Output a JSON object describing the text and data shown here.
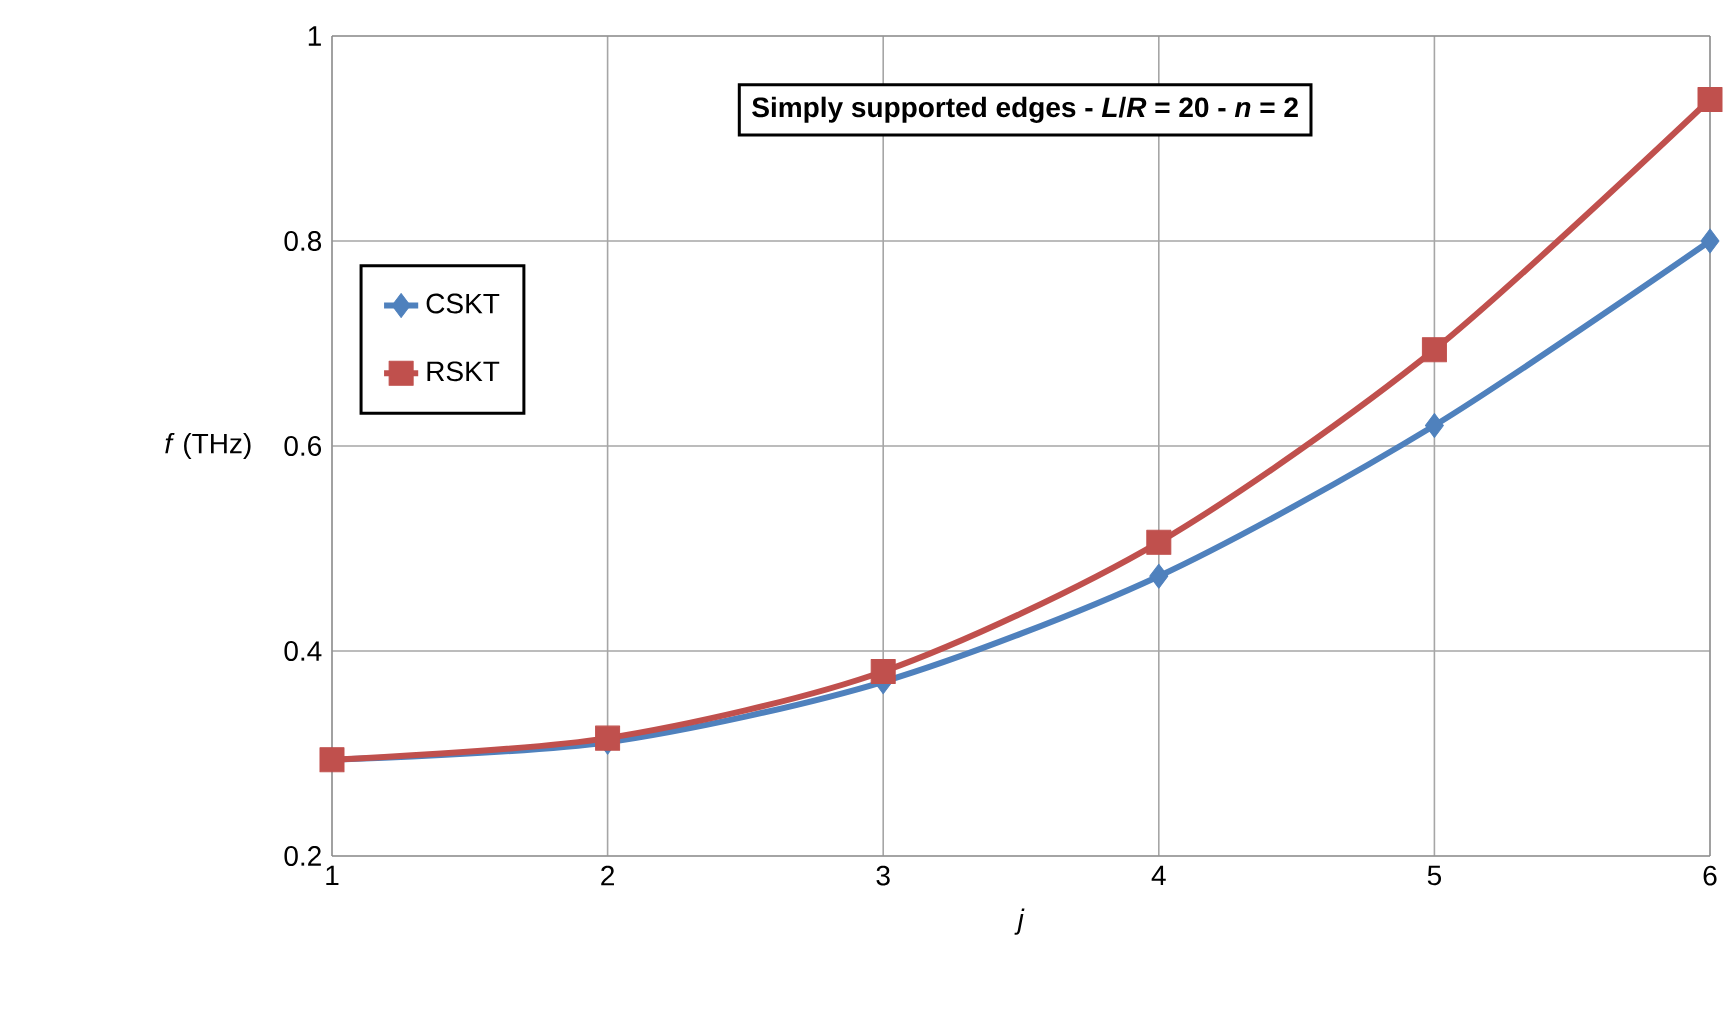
{
  "chart_data": {
    "type": "line",
    "title": "Simply supported edges - *L*/*R* = 20 - *n* = 2",
    "xlabel": "*j*",
    "ylabel": "*f* (THz)",
    "x": [
      1,
      2,
      3,
      4,
      5,
      6
    ],
    "series": [
      {
        "name": "CSKT",
        "color": "#4f81bd",
        "marker": "diamond",
        "values": [
          0.294,
          0.311,
          0.37,
          0.473,
          0.62,
          0.8
        ]
      },
      {
        "name": "RSKT",
        "color": "#c0504d",
        "marker": "square",
        "values": [
          0.294,
          0.315,
          0.38,
          0.506,
          0.694,
          0.938
        ]
      }
    ],
    "xlim": [
      1,
      6
    ],
    "xticks": [
      1,
      2,
      3,
      4,
      5,
      6
    ],
    "ylim": [
      0.2,
      1
    ],
    "yticks": [
      0.2,
      0.4,
      0.6,
      0.8,
      1
    ],
    "grid": true,
    "legend": "left",
    "line_style": "solid"
  }
}
